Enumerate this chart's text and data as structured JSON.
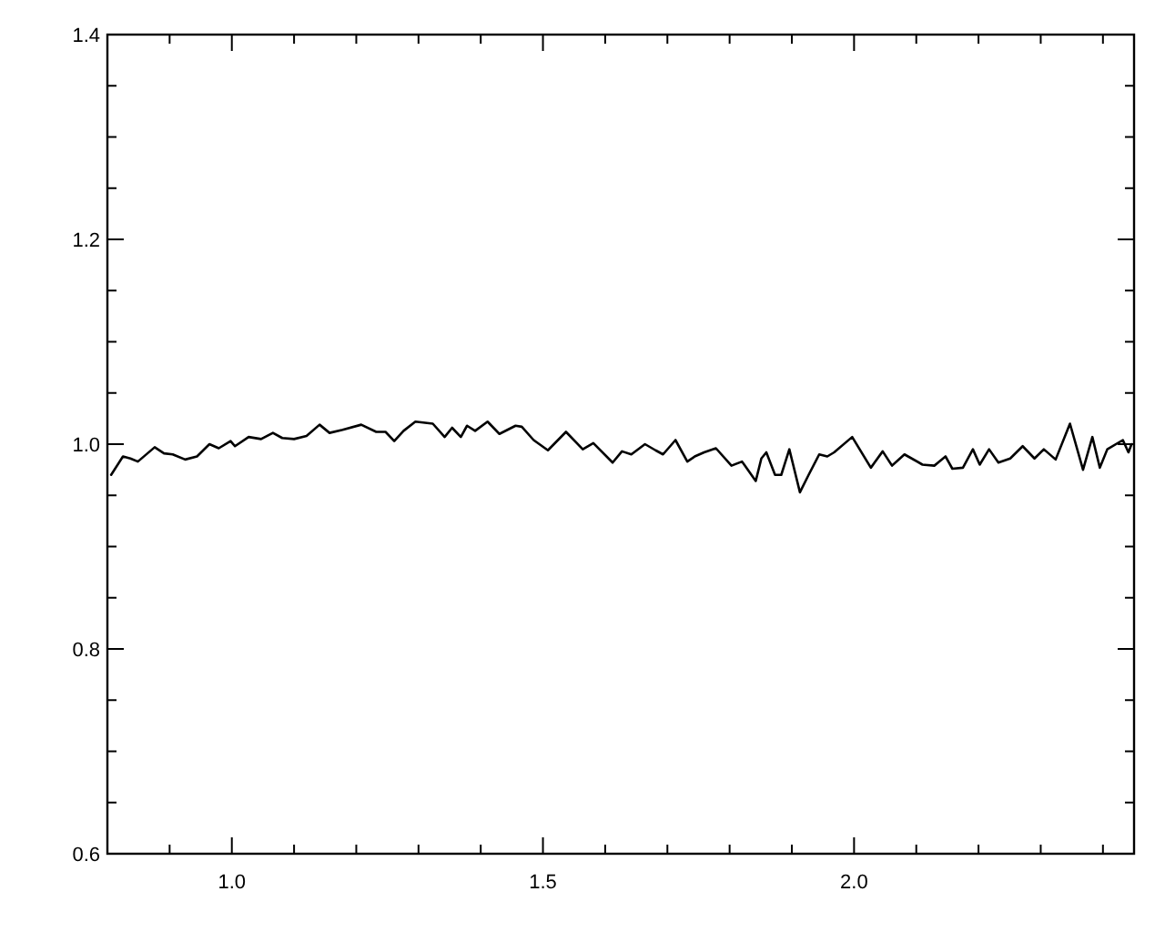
{
  "chart_data": {
    "type": "line",
    "xlim": [
      0.8,
      2.45
    ],
    "ylim": [
      0.6,
      1.4
    ],
    "xticks": [
      {
        "value": 0.8,
        "label": null
      },
      {
        "value": 0.9,
        "label": null
      },
      {
        "value": 1.0,
        "label": "1.0"
      },
      {
        "value": 1.1,
        "label": null
      },
      {
        "value": 1.2,
        "label": null
      },
      {
        "value": 1.3,
        "label": null
      },
      {
        "value": 1.4,
        "label": null
      },
      {
        "value": 1.5,
        "label": "1.5"
      },
      {
        "value": 1.6,
        "label": null
      },
      {
        "value": 1.7,
        "label": null
      },
      {
        "value": 1.8,
        "label": null
      },
      {
        "value": 1.9,
        "label": null
      },
      {
        "value": 2.0,
        "label": "2.0"
      },
      {
        "value": 2.1,
        "label": null
      },
      {
        "value": 2.2,
        "label": null
      },
      {
        "value": 2.3,
        "label": null
      },
      {
        "value": 2.4,
        "label": null
      }
    ],
    "yticks": [
      {
        "value": 0.6,
        "label": "0.6"
      },
      {
        "value": 0.65,
        "label": null
      },
      {
        "value": 0.7,
        "label": null
      },
      {
        "value": 0.75,
        "label": null
      },
      {
        "value": 0.8,
        "label": "0.8"
      },
      {
        "value": 0.85,
        "label": null
      },
      {
        "value": 0.9,
        "label": null
      },
      {
        "value": 0.95,
        "label": null
      },
      {
        "value": 1.0,
        "label": "1.0"
      },
      {
        "value": 1.05,
        "label": null
      },
      {
        "value": 1.1,
        "label": null
      },
      {
        "value": 1.15,
        "label": null
      },
      {
        "value": 1.2,
        "label": "1.2"
      },
      {
        "value": 1.25,
        "label": null
      },
      {
        "value": 1.3,
        "label": null
      },
      {
        "value": 1.35,
        "label": null
      },
      {
        "value": 1.4,
        "label": "1.4"
      }
    ],
    "grid": false,
    "marker": "none",
    "line_style": "solid",
    "series": [
      {
        "color": "#000000",
        "x": [
          0.806,
          0.825,
          0.837,
          0.849,
          0.876,
          0.891,
          0.905,
          0.925,
          0.944,
          0.964,
          0.979,
          0.998,
          1.005,
          1.027,
          1.047,
          1.066,
          1.081,
          1.1,
          1.12,
          1.141,
          1.157,
          1.178,
          1.208,
          1.232,
          1.247,
          1.261,
          1.276,
          1.295,
          1.323,
          1.342,
          1.354,
          1.368,
          1.378,
          1.391,
          1.411,
          1.43,
          1.456,
          1.466,
          1.485,
          1.508,
          1.537,
          1.564,
          1.581,
          1.612,
          1.627,
          1.642,
          1.664,
          1.681,
          1.693,
          1.713,
          1.732,
          1.744,
          1.759,
          1.778,
          1.803,
          1.82,
          1.842,
          1.851,
          1.859,
          1.873,
          1.883,
          1.896,
          1.913,
          1.927,
          1.944,
          1.957,
          1.968,
          1.997,
          2.027,
          2.046,
          2.061,
          2.081,
          2.11,
          2.129,
          2.147,
          2.158,
          2.175,
          2.191,
          2.202,
          2.217,
          2.232,
          2.251,
          2.271,
          2.29,
          2.305,
          2.324,
          2.347,
          2.368,
          2.383,
          2.395,
          2.407,
          2.432,
          2.441,
          2.446
        ],
        "values": [
          0.97,
          0.988,
          0.986,
          0.983,
          0.997,
          0.991,
          0.99,
          0.985,
          0.988,
          1.0,
          0.996,
          1.003,
          0.998,
          1.007,
          1.005,
          1.011,
          1.006,
          1.005,
          1.008,
          1.019,
          1.011,
          1.014,
          1.019,
          1.012,
          1.012,
          1.003,
          1.013,
          1.022,
          1.02,
          1.007,
          1.016,
          1.007,
          1.018,
          1.013,
          1.022,
          1.01,
          1.018,
          1.017,
          1.004,
          0.994,
          1.012,
          0.995,
          1.001,
          0.982,
          0.993,
          0.99,
          1.0,
          0.994,
          0.99,
          1.004,
          0.983,
          0.988,
          0.992,
          0.996,
          0.979,
          0.983,
          0.964,
          0.986,
          0.992,
          0.97,
          0.97,
          0.995,
          0.953,
          0.97,
          0.99,
          0.988,
          0.992,
          1.007,
          0.977,
          0.993,
          0.979,
          0.99,
          0.98,
          0.979,
          0.988,
          0.976,
          0.977,
          0.995,
          0.98,
          0.995,
          0.982,
          0.986,
          0.998,
          0.986,
          0.995,
          0.985,
          1.02,
          0.975,
          1.007,
          0.977,
          0.995,
          1.004,
          0.992,
          1.0
        ]
      }
    ]
  }
}
